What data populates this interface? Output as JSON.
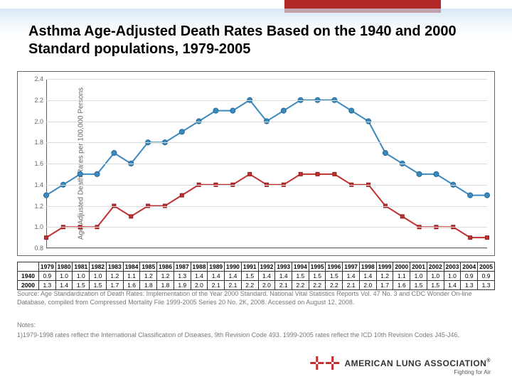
{
  "title": "Asthma Age-Adjusted Death Rates Based on the 1940 and 2000 Standard populations, 1979-2005",
  "chart": {
    "type": "line",
    "ylabel": "Age-Adjusted Death Rates per 100,000 Persons",
    "ylim": [
      0.8,
      2.4
    ],
    "ytick_step": 0.2,
    "years": [
      1979,
      1980,
      1981,
      1982,
      1983,
      1984,
      1985,
      1986,
      1987,
      1988,
      1989,
      1990,
      1991,
      1992,
      1993,
      1994,
      1995,
      1996,
      1997,
      1998,
      1999,
      2000,
      2001,
      2002,
      2003,
      2004,
      2005
    ],
    "series": [
      {
        "name": "2000",
        "label": "2000",
        "color": "#3a8ac0",
        "marker": "circle",
        "marker_size": 5,
        "line_width": 2,
        "values": [
          1.3,
          1.4,
          1.5,
          1.5,
          1.7,
          1.6,
          1.8,
          1.8,
          1.9,
          2.0,
          2.1,
          2.1,
          2.2,
          2.0,
          2.1,
          2.2,
          2.2,
          2.2,
          2.1,
          2.0,
          1.7,
          1.6,
          1.5,
          1.5,
          1.4,
          1.3,
          1.3
        ]
      },
      {
        "name": "1940",
        "label": "1940",
        "color": "#c23030",
        "marker": "square",
        "marker_size": 5,
        "line_width": 2,
        "values": [
          0.9,
          1.0,
          1.0,
          1.0,
          1.2,
          1.1,
          1.2,
          1.2,
          1.3,
          1.4,
          1.4,
          1.4,
          1.5,
          1.4,
          1.4,
          1.5,
          1.5,
          1.5,
          1.4,
          1.4,
          1.2,
          1.1,
          1.0,
          1.0,
          1.0,
          0.9,
          0.9
        ]
      }
    ],
    "background_color": "#ffffff",
    "grid_color": "#dddddd",
    "axis_color": "#666666",
    "tick_fontsize": 9,
    "label_fontsize": 10
  },
  "table": {
    "row_header": [
      "1940",
      "2000"
    ],
    "columns": [
      "1979",
      "1980",
      "1981",
      "1982",
      "1983",
      "1984",
      "1985",
      "1986",
      "1987",
      "1988",
      "1989",
      "1990",
      "1991",
      "1992",
      "1993",
      "1994",
      "1995",
      "1996",
      "1997",
      "1998",
      "1999",
      "2000",
      "2001",
      "2002",
      "2003",
      "2004",
      "2005"
    ],
    "rows": [
      [
        "0.9",
        "1.0",
        "1.0",
        "1.0",
        "1.2",
        "1.1",
        "1.2",
        "1.2",
        "1.3",
        "1.4",
        "1.4",
        "1.4",
        "1.5",
        "1.4",
        "1.4",
        "1.5",
        "1.5",
        "1.5",
        "1.4",
        "1.4",
        "1.2",
        "1.1",
        "1.0",
        "1.0",
        "1.0",
        "0.9",
        "0.9"
      ],
      [
        "1.3",
        "1.4",
        "1.5",
        "1.5",
        "1.7",
        "1.6",
        "1.8",
        "1.8",
        "1.9",
        "2.0",
        "2.1",
        "2.1",
        "2.2",
        "2.0",
        "2.1",
        "2.2",
        "2.2",
        "2.2",
        "2.1",
        "2.0",
        "1.7",
        "1.6",
        "1.5",
        "1.5",
        "1.4",
        "1.3",
        "1.3"
      ]
    ]
  },
  "source": "Source: Age Standardization of Death Rates: Implementation of the Year 2000 Standard. National Vital Statistics Reports Vol. 47 No. 3 and CDC Wonder On-line Database, compiled from Compressed Mortality File 1999-2005 Series 20 No. 2K, 2008. Accessed on August 12, 2008.",
  "notes_heading": "Notes:",
  "notes_body": "1)1979-1998 rates reflect the International Classification of Diseases, 9th Revision Code 493. 1999-2005 rates reflect the ICD 10th Revision Codes J45-J46.",
  "logo": {
    "org": "AMERICAN LUNG ASSOCIATION",
    "tagline": "Fighting for Air",
    "mark": "✛✛",
    "reg": "®"
  }
}
